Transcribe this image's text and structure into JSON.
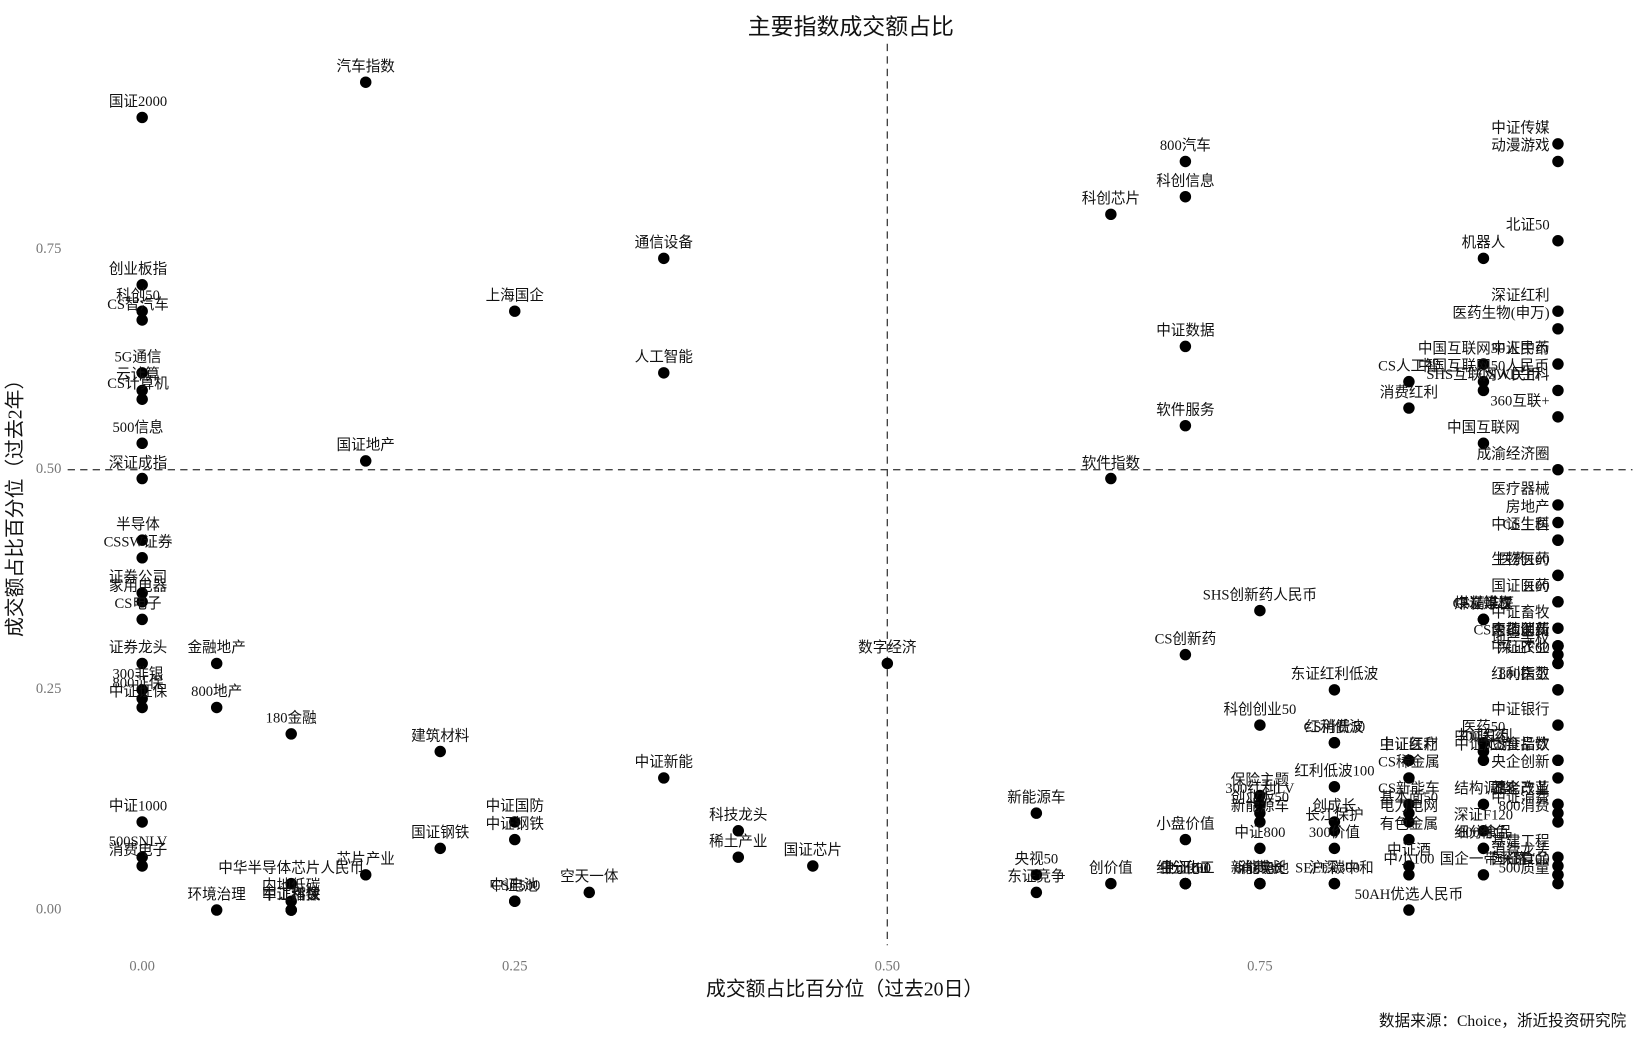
{
  "chart_data": {
    "type": "scatter",
    "title": "主要指数成交额占比",
    "xlabel": "成交额占比百分位（过去20日）",
    "ylabel": "成交额占比百分位（过去2年）",
    "source": "数据来源：Choice，浙近投资研究院",
    "color": "#000000",
    "xlim": [
      -0.05,
      1.0
    ],
    "ylim": [
      -0.04,
      0.96
    ],
    "xticks": [
      {
        "value": 0,
        "label": "0.00"
      },
      {
        "value": 0.25,
        "label": "0.25"
      },
      {
        "value": 0.5,
        "label": "0.50"
      },
      {
        "value": 0.75,
        "label": "0.75"
      }
    ],
    "yticks": [
      {
        "value": 0,
        "label": "0.00"
      },
      {
        "value": 0.25,
        "label": "0.25"
      },
      {
        "value": 0.5,
        "label": "0.50"
      },
      {
        "value": 0.75,
        "label": "0.75"
      }
    ],
    "reference_lines": {
      "x": 0.5,
      "y": 0.5
    },
    "point_labels": [
      "国证2000",
      "汽车指数",
      "创业板指",
      "科创50",
      "CS智汽车",
      "5G通信",
      "云计算",
      "CS计算机",
      "500信息",
      "深证成指",
      "国证地产",
      "上海国企",
      "通信设备",
      "人工智能",
      "半导体",
      "CSSW证券",
      "证券公司",
      "家用电器",
      "CS电子",
      "证券龙头",
      "金融地产",
      "300非银",
      "中证证保",
      "800证保",
      "800地产",
      "180金融",
      "建筑材料",
      "中证1000",
      "500SNLV",
      "消费电子",
      "中华半导体芯片人民币",
      "环境治理",
      "内地低碳",
      "中证科技",
      "中证环保",
      "军工指数",
      "芯片产业",
      "国证钢铁",
      "中证国防",
      "中证钢铁",
      "CS电池",
      "中证500",
      "空天一体",
      "中证新能",
      "科技龙头",
      "稀土产业",
      "国证芯片",
      "数字经济",
      "新能源车",
      "央视50",
      "东证竞争",
      "科创芯片",
      "软件指数",
      "创价值",
      "800汽车",
      "科创信息",
      "中证数据",
      "软件服务",
      "CS创新药",
      "小盘价值",
      "中证800",
      "中证100",
      "上证50",
      "上证180",
      "细分化工",
      "SHS创新药人民币",
      "科创创业50",
      "保险主题",
      "创业板50",
      "新能源车",
      "300红利LV",
      "新能电池",
      "800成长",
      "消费80",
      "东证红利低波",
      "红利低波",
      "红利低波100",
      "创成长",
      "基本面50",
      "长江保护",
      "300价值",
      "SEEE碳中和",
      "沪深300",
      "CS消费50",
      "中证医疗",
      "医药50",
      "上证红利",
      "CS稀金属",
      "CS新能车",
      "电力电网",
      "有色金属",
      "中证酒",
      "中小100",
      "50AH优选人民币",
      "CS人工智",
      "消费红利",
      "机器人",
      "中国互联网30人民币",
      "中国互联网50人民币",
      "SHS互联网人民币",
      "中国互联网",
      "煤炭等权",
      "中证煤炭",
      "CS精准医",
      "300医药",
      "中证红利",
      "中证旅游",
      "结构调整",
      "深证F120",
      "800有色",
      "细分食品",
      "国企一带一路",
      "中证传媒",
      "动漫游戏",
      "北证50",
      "深证红利",
      "医药生物(申万)",
      "中证中药",
      "CSWD生科",
      "360互联+",
      "成渝经济圈",
      "医疗器械",
      "房地产",
      "CS生医",
      "中证生科",
      "生物医药",
      "医药100",
      "i100",
      "国证医药",
      "中证畜牧",
      "内地消费",
      "CS医药创新",
      "全指医药",
      "地产等权",
      "深证F60",
      "中证农业",
      "红利指数",
      "800医卫",
      "中证银行",
      "上证指数",
      "CS食品饮",
      "央企创新",
      "国企改革",
      "养老产业",
      "中证消费",
      "800消费",
      "基建工程",
      "深证100",
      "国证食品",
      "500质量",
      "消费龙头"
    ],
    "x": [
      0,
      0.15,
      0,
      0,
      0,
      0,
      0,
      0,
      0,
      0,
      0.15,
      0.25,
      0.35,
      0.35,
      0,
      0,
      0,
      0,
      0,
      0,
      0.05,
      0,
      0,
      0,
      0.05,
      0.1,
      0.2,
      0,
      0,
      0,
      0.1,
      0.05,
      0.1,
      0.1,
      0.1,
      0.1,
      0.15,
      0.2,
      0.25,
      0.25,
      0.25,
      0.25,
      0.3,
      0.35,
      0.4,
      0.4,
      0.45,
      0.5,
      0.6,
      0.6,
      0.6,
      0.65,
      0.65,
      0.65,
      0.7,
      0.7,
      0.7,
      0.7,
      0.7,
      0.7,
      0.75,
      0.7,
      0.7,
      0.7,
      0.7,
      0.75,
      0.75,
      0.75,
      0.75,
      0.75,
      0.75,
      0.75,
      0.75,
      0.75,
      0.8,
      0.8,
      0.8,
      0.8,
      0.85,
      0.8,
      0.8,
      0.8,
      0.8,
      0.8,
      0.85,
      0.9,
      0.85,
      0.85,
      0.85,
      0.85,
      0.85,
      0.85,
      0.85,
      0.85,
      0.85,
      0.85,
      0.9,
      0.9,
      0.9,
      0.9,
      0.9,
      0.9,
      0.9,
      0.9,
      0.9,
      0.9,
      0.9,
      0.9,
      0.9,
      0.9,
      0.9,
      0.9,
      0.95,
      0.95,
      0.95,
      0.95,
      0.95,
      0.95,
      0.95,
      0.95,
      0.95,
      0.95,
      0.95,
      0.95,
      0.95,
      0.95,
      0.95,
      0.95,
      0.95,
      0.95,
      0.95,
      0.95,
      0.95,
      0.95,
      0.95,
      0.95,
      0.95,
      0.95,
      0.95,
      0.95,
      0.95,
      0.95,
      0.95,
      0.95,
      0.95,
      0.95,
      0.95,
      0.95,
      0.95,
      0.95,
      0.95
    ],
    "y": [
      0.9,
      0.94,
      0.71,
      0.68,
      0.67,
      0.61,
      0.59,
      0.58,
      0.53,
      0.49,
      0.51,
      0.68,
      0.74,
      0.61,
      0.42,
      0.4,
      0.36,
      0.35,
      0.33,
      0.28,
      0.28,
      0.25,
      0.23,
      0.24,
      0.23,
      0.2,
      0.18,
      0.1,
      0.06,
      0.05,
      0.03,
      0,
      0.01,
      0,
      0,
      0,
      0.04,
      0.07,
      0.1,
      0.08,
      0.01,
      0.01,
      0.02,
      0.15,
      0.09,
      0.06,
      0.05,
      0.28,
      0.11,
      0.04,
      0.02,
      0.79,
      0.49,
      0.03,
      0.85,
      0.81,
      0.64,
      0.55,
      0.29,
      0.08,
      0.07,
      0.03,
      0.03,
      0.03,
      0.03,
      0.34,
      0.21,
      0.13,
      0.11,
      0.1,
      0.12,
      0.03,
      0.03,
      0.03,
      0.25,
      0.19,
      0.14,
      0.1,
      0.11,
      0.09,
      0.07,
      0.03,
      0.03,
      0.19,
      0.17,
      0.19,
      0.17,
      0.15,
      0.12,
      0.1,
      0.08,
      0.05,
      0.04,
      0,
      0.6,
      0.57,
      0.74,
      0.62,
      0.6,
      0.59,
      0.53,
      0.33,
      0.33,
      0.33,
      0.18,
      0.18,
      0.17,
      0.12,
      0.09,
      0.07,
      0.07,
      0.04,
      0.87,
      0.85,
      0.76,
      0.68,
      0.66,
      0.62,
      0.59,
      0.56,
      0.5,
      0.46,
      0.44,
      0.42,
      0.42,
      0.38,
      0.38,
      0.35,
      0.35,
      0.32,
      0.3,
      0.3,
      0.3,
      0.29,
      0.28,
      0.28,
      0.25,
      0.25,
      0.21,
      0.17,
      0.17,
      0.15,
      0.12,
      0.12,
      0.11,
      0.1,
      0.06,
      0.04,
      0.04,
      0.03,
      0.05
    ]
  }
}
